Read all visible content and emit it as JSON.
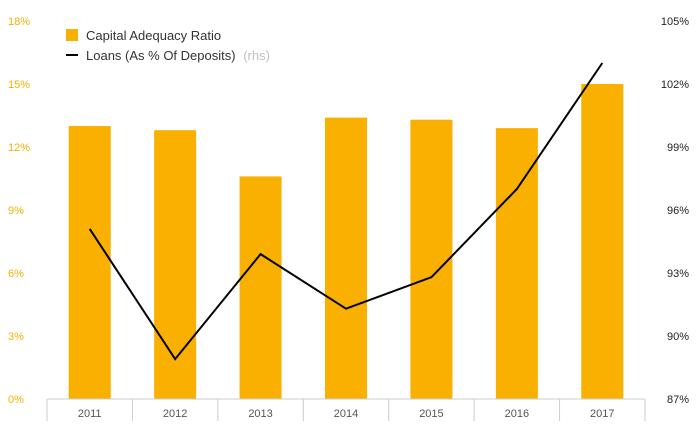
{
  "chart_data": {
    "type": "bar",
    "categories": [
      "2011",
      "2012",
      "2013",
      "2014",
      "2015",
      "2016",
      "2017"
    ],
    "series": [
      {
        "name": "Capital Adequacy Ratio",
        "type": "bar",
        "axis": "left",
        "values": [
          13.0,
          12.8,
          10.6,
          13.4,
          13.3,
          12.9,
          15.0
        ]
      },
      {
        "name": "Loans (As % Of Deposits)",
        "name_suffix": "(rhs)",
        "type": "line",
        "axis": "right",
        "values": [
          95.1,
          88.9,
          93.9,
          91.3,
          92.8,
          97.0,
          103.0
        ]
      }
    ],
    "y_left": {
      "lim": [
        0,
        18
      ],
      "ticks": [
        0,
        3,
        6,
        9,
        12,
        15,
        18
      ],
      "tick_labels": [
        "0%",
        "3%",
        "6%",
        "9%",
        "12%",
        "15%",
        "18%"
      ]
    },
    "y_right": {
      "lim": [
        87,
        105
      ],
      "ticks": [
        87,
        90,
        93,
        96,
        99,
        102,
        105
      ],
      "tick_labels": [
        "87%",
        "90%",
        "93%",
        "96%",
        "99%",
        "102%",
        "105%"
      ]
    },
    "legend_position": "top-left",
    "colors": {
      "bar": "#f9b000",
      "line": "#000000",
      "left_ticks": "#f5b000",
      "right_ticks": "#222222",
      "axis": "#cccccc"
    }
  }
}
